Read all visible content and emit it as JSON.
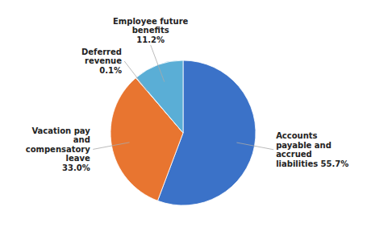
{
  "chart_data": {
    "type": "pie",
    "categories": [
      "Accounts\npayable and\naccrued\nliabilities 55.7%",
      "Vacation pay\nand\ncompensatory\nleave\n33.0%",
      "Deferred\nrevenue\n0.1%",
      "Employee future\nbenefits\n11.2%"
    ],
    "values": [
      55.7,
      33.0,
      0.1,
      11.2
    ],
    "colors": [
      "#3B72C8",
      "#E87530",
      "#3B72C8",
      "#5AAED6"
    ]
  }
}
